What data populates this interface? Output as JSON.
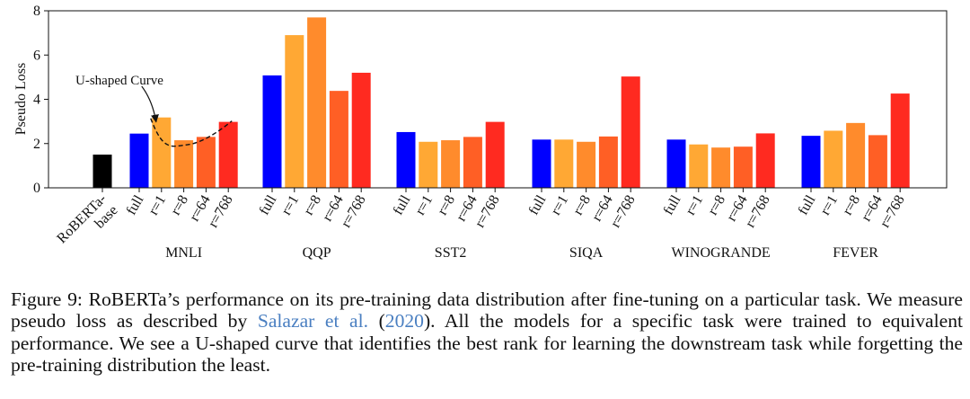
{
  "chart_data": {
    "type": "bar",
    "ylabel": "Pseudo Loss",
    "ylim": [
      0,
      8
    ],
    "yticks": [
      0,
      2,
      4,
      6,
      8
    ],
    "grid": false,
    "baseline": {
      "label": "RoBERTa-base",
      "label_lines": [
        "RoBERTa-",
        "base"
      ],
      "value": 1.5,
      "color": "#000000"
    },
    "bar_labels": [
      "full",
      "r=1",
      "r=8",
      "r=64",
      "r=768"
    ],
    "bar_colors": [
      "#0000ff",
      "#ffa834",
      "#ff8b2c",
      "#ff5f25",
      "#ff2a20"
    ],
    "groups": [
      {
        "name": "MNLI",
        "values": [
          2.45,
          3.18,
          2.15,
          2.3,
          2.98
        ]
      },
      {
        "name": "QQP",
        "values": [
          5.08,
          6.9,
          7.7,
          4.38,
          5.2
        ]
      },
      {
        "name": "SST2",
        "values": [
          2.52,
          2.08,
          2.15,
          2.3,
          2.98
        ]
      },
      {
        "name": "SIQA",
        "values": [
          2.18,
          2.18,
          2.08,
          2.32,
          5.03
        ]
      },
      {
        "name": "WINOGRANDE",
        "values": [
          2.18,
          1.96,
          1.82,
          1.86,
          2.46
        ]
      },
      {
        "name": "FEVER",
        "values": [
          2.35,
          2.58,
          2.93,
          2.38,
          4.26
        ]
      }
    ],
    "annotation": {
      "text": "U-shaped Curve"
    }
  },
  "caption": {
    "prefix": "Figure 9: RoBERTa’s performance on its pre-training data distribution after fine-tuning on a particular task. We measure pseudo loss as described by ",
    "cite_author": "Salazar et al.",
    "cite_open": " (",
    "cite_year": "2020",
    "suffix": "). All the models for a specific task were trained to equivalent performance. We see a U-shaped curve that identifies the best rank for learning the downstream task while forgetting the pre-training distribution the least."
  }
}
